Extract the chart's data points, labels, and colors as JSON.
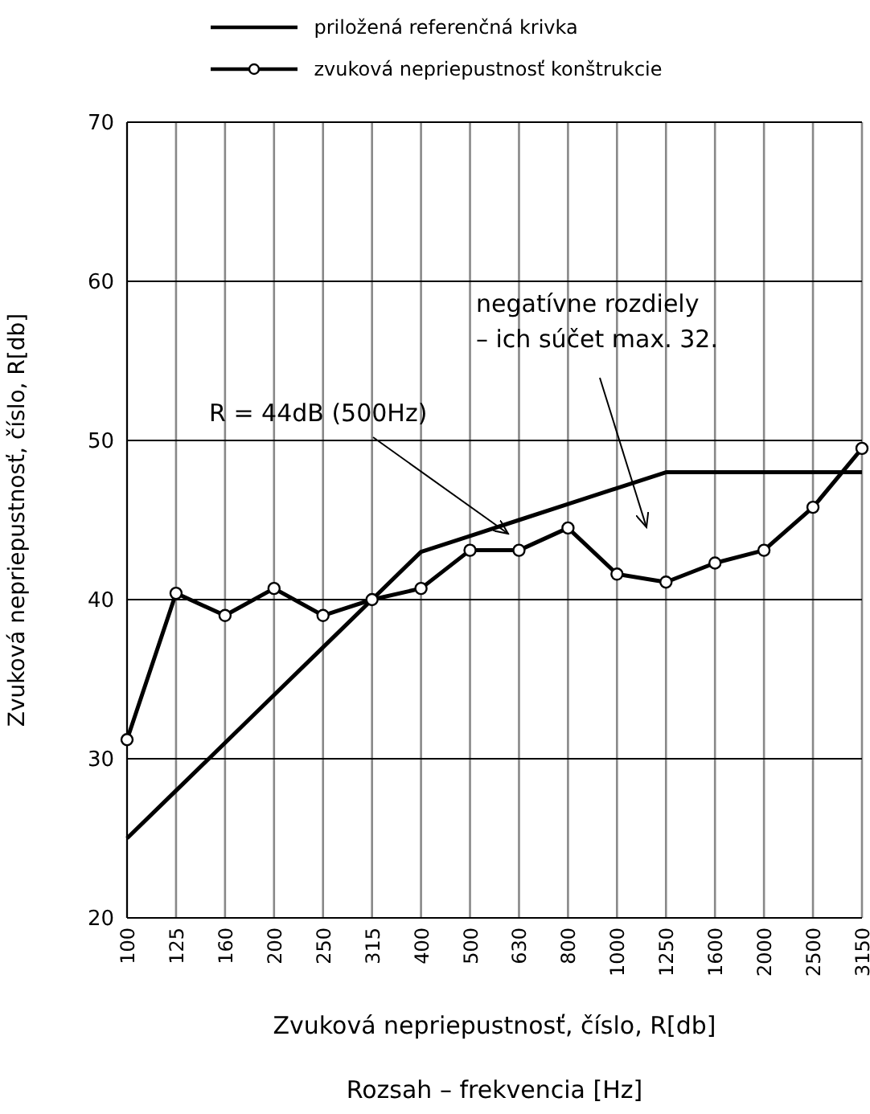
{
  "chart_data": {
    "type": "line",
    "xlabel": "Zvuková nepriepustnosť, číslo, R[db]",
    "ylabel": "Zvuková nepriepustnosť, číslo, R[db]",
    "categories": [
      "100",
      "125",
      "160",
      "200",
      "250",
      "315",
      "400",
      "500",
      "630",
      "800",
      "1000",
      "1250",
      "1600",
      "2000",
      "2500",
      "3150"
    ],
    "series": [
      {
        "name": "priložená referenčná krivka",
        "color": "#000000",
        "marker": "none",
        "values": [
          25,
          28,
          31,
          34,
          37,
          40,
          43,
          44,
          45,
          46,
          47,
          48,
          48,
          48,
          48,
          48
        ]
      },
      {
        "name": "zvuková nepriepustnosť konštrukcie",
        "color": "#000000",
        "marker": "circle",
        "values": [
          31.2,
          40.4,
          39,
          40.7,
          39,
          40,
          40.7,
          43.1,
          43.1,
          44.5,
          41.6,
          41.1,
          42.3,
          43.1,
          45.8,
          49.5
        ]
      }
    ],
    "ylim": [
      20,
      70
    ],
    "yticks": [
      20,
      30,
      40,
      50,
      60,
      70
    ],
    "grid": true,
    "legend": "top",
    "line_style": "solid",
    "annotations": [
      "R = 44dB (500Hz)",
      "negatívne rozdiely\n– ich súčet max. 32.",
      "Rozsah – frekvencia [Hz]"
    ]
  }
}
